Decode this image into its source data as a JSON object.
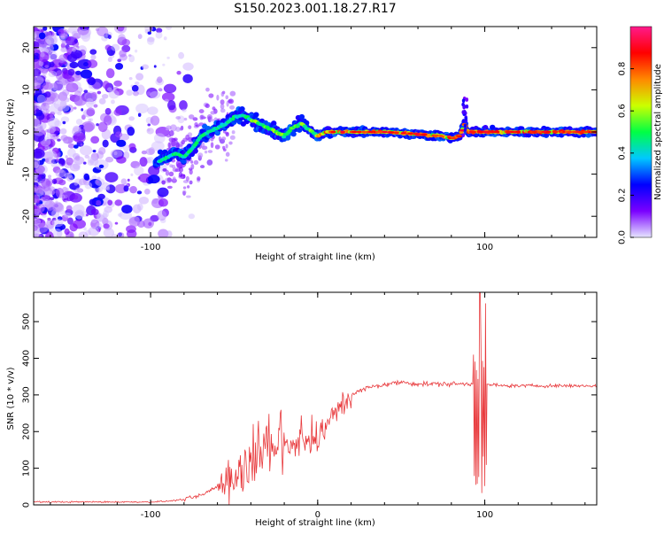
{
  "figure": {
    "title": "S150.2023.001.18.27.R17"
  },
  "chart_data": [
    {
      "type": "heatmap",
      "xlabel": "Height of straight line (km)",
      "ylabel": "Frequency (Hz)",
      "xlim": [
        -170,
        167
      ],
      "ylim": [
        -25,
        25
      ],
      "xticks": [
        -100,
        0,
        100
      ],
      "xtick_labels": [
        "-100",
        "",
        "100"
      ],
      "yticks": [
        -20,
        -10,
        0,
        10,
        20
      ],
      "ytick_labels": [
        "-20",
        "-10",
        "0",
        "10",
        "20"
      ],
      "grid": false,
      "colorbar": {
        "label": "Normalized spectral amplitude",
        "range": [
          0,
          1
        ],
        "ticks": [
          0.0,
          0.2,
          0.4,
          0.6,
          0.8
        ],
        "tick_labels": [
          "0.0",
          "0.2",
          "0.4",
          "0.6",
          "0.8"
        ],
        "colors": [
          "#e6e6ff",
          "#7a00ff",
          "#0000ff",
          "#00c8ff",
          "#00ff44",
          "#ccff00",
          "#ff8800",
          "#ff0000",
          "#ff1a8c"
        ]
      },
      "ridge": {
        "x": [
          -95,
          -90,
          -85,
          -80,
          -75,
          -70,
          -65,
          -60,
          -55,
          -50,
          -45,
          -40,
          -35,
          -30,
          -25,
          -20,
          -15,
          -10,
          -5,
          0,
          5,
          10,
          20,
          40,
          60,
          75,
          80,
          85,
          88,
          90,
          100,
          120,
          140,
          165
        ],
        "y": [
          -7,
          -6,
          -5,
          -6,
          -4,
          -1,
          0,
          1,
          2,
          3.5,
          4,
          3,
          2,
          1,
          0,
          -1,
          1,
          2,
          0.5,
          -1,
          0,
          0,
          0,
          0,
          -0.5,
          -1,
          -1.5,
          -1,
          2,
          0,
          0,
          0,
          0,
          0
        ]
      }
    },
    {
      "type": "line",
      "xlabel": "Height of straight line (km)",
      "ylabel": "SNR (10 * v/v)",
      "xlim": [
        -170,
        167
      ],
      "ylim": [
        0,
        580
      ],
      "xticks": [
        -100,
        0,
        100
      ],
      "xtick_labels": [
        "-100",
        "0",
        "100"
      ],
      "yticks": [
        0,
        100,
        200,
        300,
        400,
        500
      ],
      "ytick_labels": [
        "0",
        "100",
        "200",
        "300",
        "400",
        "500"
      ],
      "grid": false,
      "color": "#e8393c",
      "trend": {
        "x": [
          -170,
          -140,
          -100,
          -90,
          -80,
          -70,
          -60,
          -50,
          -40,
          -30,
          -20,
          -10,
          0,
          10,
          20,
          30,
          40,
          50,
          60,
          70,
          80,
          90,
          95,
          97,
          100,
          110,
          130,
          167
        ],
        "y": [
          8,
          8,
          8,
          10,
          15,
          25,
          50,
          80,
          110,
          140,
          160,
          170,
          180,
          250,
          300,
          320,
          328,
          335,
          330,
          330,
          330,
          330,
          330,
          330,
          330,
          325,
          325,
          325
        ]
      },
      "spike": {
        "x": [
          95,
          97,
          98,
          99,
          100
        ],
        "y": [
          580,
          15,
          560,
          20,
          540
        ]
      }
    }
  ]
}
